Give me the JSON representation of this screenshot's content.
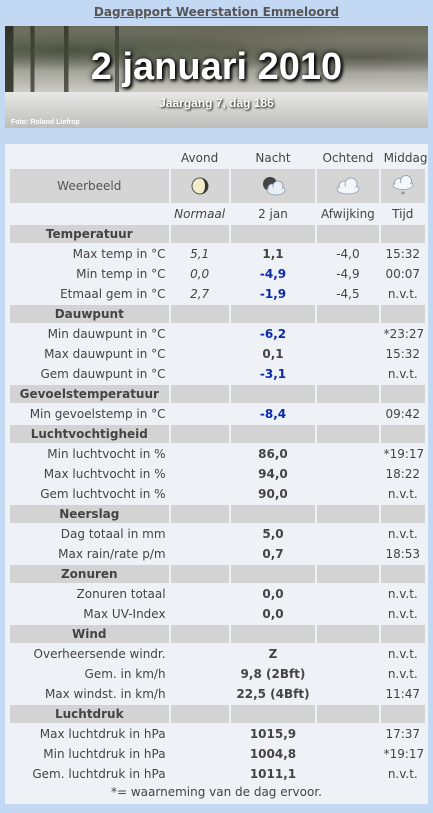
{
  "title": "Dagrapport Weerstation Emmeloord",
  "banner": {
    "date": "2 januari 2010",
    "subtitle": "Jaargang 7, dag 186",
    "credit": "Foto: Roland Liefrop"
  },
  "columns": {
    "avond": "Avond",
    "nacht": "Nacht",
    "ochtend": "Ochtend",
    "middag": "Middag"
  },
  "weerbeeld": {
    "label": "Weerbeeld",
    "icons": [
      "moon-icon",
      "cloudy-night-icon",
      "cloud-icon",
      "snow-cloud-icon"
    ]
  },
  "subheader": {
    "avond": "Normaal",
    "nacht": "2 jan",
    "ochtend": "Afwijking",
    "middag": "Tijd"
  },
  "sections": {
    "temperatuur": "Temperatuur",
    "dauwpunt": "Dauwpunt",
    "gevoelstemperatuur": "Gevoelstemperatuur",
    "luchtvochtigheid": "Luchtvochtigheid",
    "neerslag": "Neerslag",
    "zonuren": "Zonuren",
    "wind": "Wind",
    "luchtdruk": "Luchtdruk"
  },
  "rows": {
    "max_temp": {
      "label": "Max temp in °C",
      "normaal": "5,1",
      "waarde": "1,1",
      "afwijking": "-4,0",
      "tijd": "15:32"
    },
    "min_temp": {
      "label": "Min temp in °C",
      "normaal": "0,0",
      "waarde": "-4,9",
      "afwijking": "-4,9",
      "tijd": "00:07"
    },
    "etmaal_gem": {
      "label": "Etmaal gem in °C",
      "normaal": "2,7",
      "waarde": "-1,9",
      "afwijking": "-4,5",
      "tijd": "n.v.t."
    },
    "min_dauwpunt": {
      "label": "Min dauwpunt in °C",
      "waarde": "-6,2",
      "tijd": "*23:27"
    },
    "max_dauwpunt": {
      "label": "Max dauwpunt in °C",
      "waarde": "0,1",
      "tijd": "15:32"
    },
    "gem_dauwpunt": {
      "label": "Gem dauwpunt in °C",
      "waarde": "-3,1",
      "tijd": "n.v.t."
    },
    "min_gevoelstemp": {
      "label": "Min gevoelstemp in °C",
      "waarde": "-8,4",
      "tijd": "09:42"
    },
    "min_luchtvocht": {
      "label": "Min luchtvocht in %",
      "waarde": "86,0",
      "tijd": "*19:17"
    },
    "max_luchtvocht": {
      "label": "Max luchtvocht in %",
      "waarde": "94,0",
      "tijd": "18:22"
    },
    "gem_luchtvocht": {
      "label": "Gem luchtvocht in %",
      "waarde": "90,0",
      "tijd": "n.v.t."
    },
    "dag_totaal": {
      "label": "Dag totaal in mm",
      "waarde": "5,0",
      "tijd": "n.v.t."
    },
    "max_rain_rate": {
      "label": "Max rain/rate p/m",
      "waarde": "0,7",
      "tijd": "18:53"
    },
    "zonuren_totaal": {
      "label": "Zonuren totaal",
      "waarde": "0,0",
      "tijd": "n.v.t."
    },
    "max_uv": {
      "label": "Max UV-Index",
      "waarde": "0,0",
      "tijd": "n.v.t."
    },
    "overheersende_windr": {
      "label": "Overheersende windr.",
      "waarde": "Z",
      "tijd": "n.v.t."
    },
    "gem_kmh": {
      "label": "Gem. in km/h",
      "waarde": "9,8 (2Bft)",
      "tijd": "n.v.t."
    },
    "max_windst": {
      "label": "Max windst. in km/h",
      "waarde": "22,5 (4Bft)",
      "tijd": "11:47"
    },
    "max_luchtdruk": {
      "label": "Max luchtdruk in hPa",
      "waarde": "1015,9",
      "tijd": "17:37"
    },
    "min_luchtdruk": {
      "label": "Min luchtdruk in hPa",
      "waarde": "1004,8",
      "tijd": "*19:17"
    },
    "gem_luchtdruk": {
      "label": "Gem. luchtdruk in hPa",
      "waarde": "1011,1",
      "tijd": "n.v.t."
    }
  },
  "footnote": "*= waarneming van de dag ervoor.",
  "colors": {
    "background": "#c3d9f3",
    "panel": "#eef1f6",
    "section": "#d3d3d3",
    "negative_value": "#0a2aa8",
    "deviation": "#2a3dbb"
  }
}
